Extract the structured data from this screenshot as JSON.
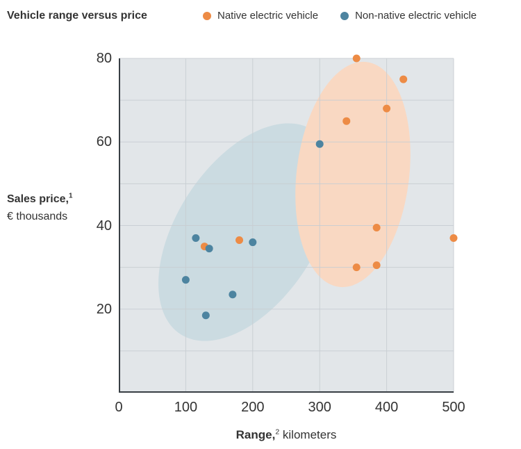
{
  "title": "Vehicle range versus price",
  "legend": [
    {
      "label": "Native electric vehicle",
      "color": "#ED8B45"
    },
    {
      "label": "Non-native electric vehicle",
      "color": "#4D84A0"
    }
  ],
  "y_axis": {
    "label_bold": "Sales price,",
    "label_sup": "1",
    "label_unit": "€ thousands",
    "ticks": [
      80,
      60,
      40,
      20
    ]
  },
  "x_axis": {
    "label_bold": "Range,",
    "label_sup": "2",
    "label_unit": " kilometers",
    "ticks": [
      0,
      100,
      200,
      300,
      400,
      500
    ]
  },
  "chart_data": {
    "type": "scatter",
    "title": "Vehicle range versus price",
    "xlabel": "Range, kilometers",
    "ylabel": "Sales price, € thousands",
    "xlim": [
      0,
      500
    ],
    "ylim": [
      0,
      80
    ],
    "x_grid_step": 100,
    "y_grid_step": 10,
    "grid": true,
    "legend_position": "top",
    "series": [
      {
        "name": "Native electric vehicle",
        "color": "#ED8B45",
        "points": [
          [
            128,
            35
          ],
          [
            180,
            36.5
          ],
          [
            340,
            65
          ],
          [
            355,
            80
          ],
          [
            355,
            30
          ],
          [
            385,
            39.5
          ],
          [
            385,
            30.5
          ],
          [
            400,
            68
          ],
          [
            425,
            75
          ],
          [
            500,
            37
          ]
        ]
      },
      {
        "name": "Non-native electric vehicle",
        "color": "#4D84A0",
        "points": [
          [
            100,
            27
          ],
          [
            115,
            37
          ],
          [
            130,
            18.5
          ],
          [
            135,
            34.5
          ],
          [
            170,
            23.5
          ],
          [
            200,
            36
          ],
          [
            300,
            59.5
          ]
        ]
      }
    ],
    "clusters": [
      {
        "name": "non-native",
        "color": "#CBDBE1",
        "cx": 184,
        "cy": 250,
        "rx": 100,
        "ry": 175,
        "rotate": 33
      },
      {
        "name": "native",
        "color": "#F9D8C2",
        "cx": 337,
        "cy": 167,
        "rx": 81,
        "ry": 163,
        "rotate": 7
      }
    ],
    "plot_bg": "#E2E6E9",
    "grid_color": "#C8CDD2",
    "axis_color": "#383E44",
    "point_radius": 5.5
  }
}
